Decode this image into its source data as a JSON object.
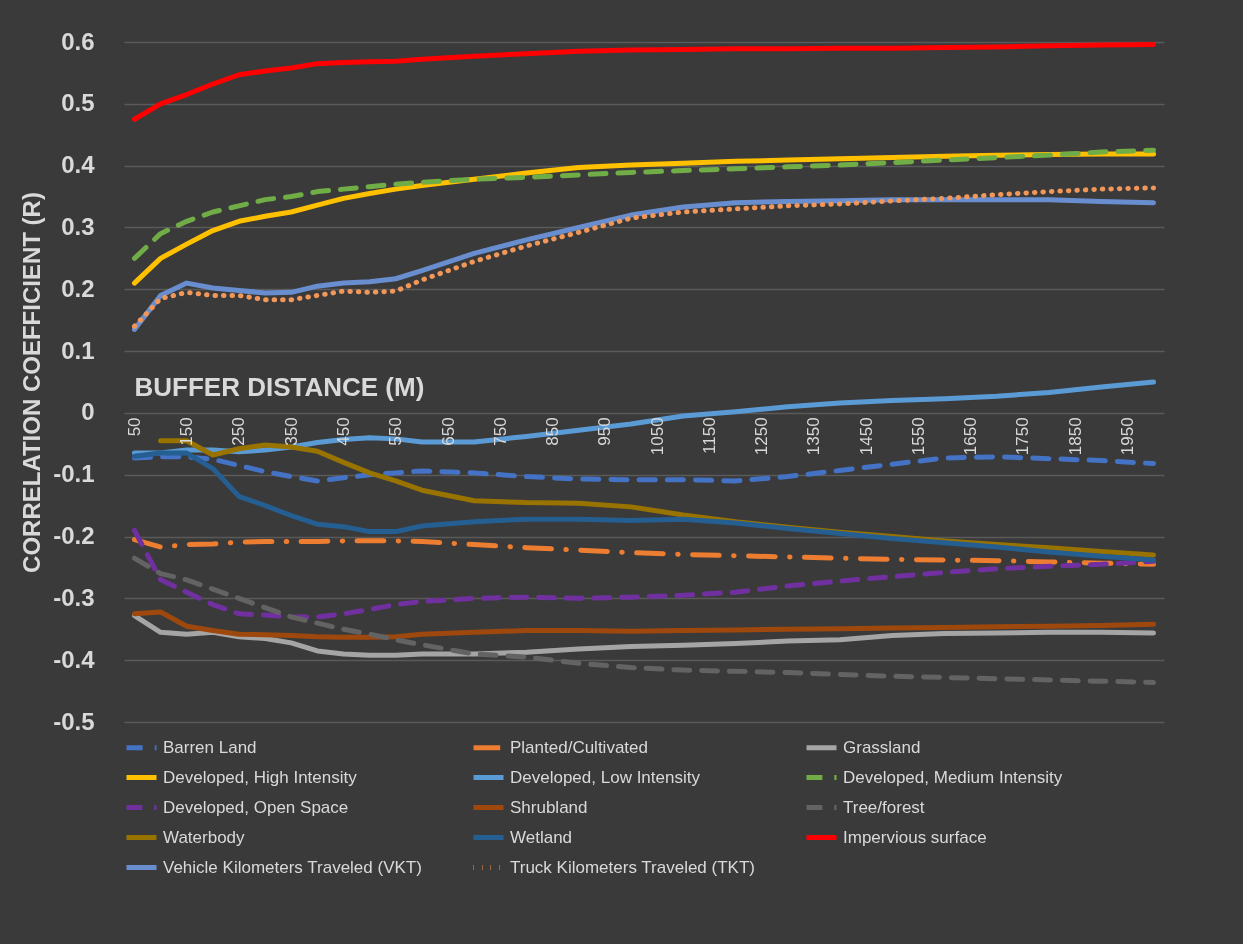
{
  "chart_data": {
    "type": "line",
    "xlabel": "BUFFER DISTANCE (M)",
    "ylabel": "CORRELATION COEFFICIENT (R)",
    "x": [
      50,
      100,
      150,
      200,
      250,
      300,
      350,
      400,
      450,
      500,
      550,
      600,
      700,
      800,
      900,
      1000,
      1100,
      1200,
      1300,
      1400,
      1500,
      1600,
      1700,
      1800,
      1900,
      2000
    ],
    "xlim": [
      30,
      2020
    ],
    "xticks": [
      50,
      150,
      250,
      350,
      450,
      550,
      650,
      750,
      850,
      950,
      1050,
      1150,
      1250,
      1350,
      1450,
      1550,
      1650,
      1750,
      1850,
      1950
    ],
    "ylim": [
      -0.5,
      0.6
    ],
    "yticks": [
      -0.5,
      -0.4,
      -0.3,
      -0.2,
      -0.1,
      0,
      0.1,
      0.2,
      0.3,
      0.4,
      0.5,
      0.6
    ],
    "grid": "y",
    "legend": "bottom",
    "marker": "none",
    "series": [
      {
        "name": "Barren Land",
        "color": "#4472c4",
        "line_style": "dashed",
        "values": [
          -0.073,
          -0.071,
          -0.071,
          -0.075,
          -0.085,
          -0.095,
          -0.103,
          -0.11,
          -0.105,
          -0.1,
          -0.097,
          -0.094,
          -0.097,
          -0.103,
          -0.107,
          -0.108,
          -0.108,
          -0.11,
          -0.103,
          -0.093,
          -0.083,
          -0.073,
          -0.071,
          -0.074,
          -0.077,
          -0.082
        ]
      },
      {
        "name": "Planted/Cultivated",
        "color": "#ed7d31",
        "line_style": "dashdot",
        "values": [
          -0.205,
          -0.217,
          -0.213,
          -0.212,
          -0.209,
          -0.208,
          -0.208,
          -0.208,
          -0.207,
          -0.207,
          -0.207,
          -0.208,
          -0.213,
          -0.218,
          -0.222,
          -0.226,
          -0.229,
          -0.231,
          -0.233,
          -0.235,
          -0.237,
          -0.238,
          -0.239,
          -0.241,
          -0.243,
          -0.245
        ]
      },
      {
        "name": "Grassland",
        "color": "#a5a5a5",
        "line_style": "solid",
        "values": [
          -0.328,
          -0.355,
          -0.358,
          -0.355,
          -0.362,
          -0.365,
          -0.372,
          -0.385,
          -0.39,
          -0.392,
          -0.392,
          -0.39,
          -0.39,
          -0.387,
          -0.382,
          -0.378,
          -0.376,
          -0.373,
          -0.369,
          -0.367,
          -0.36,
          -0.357,
          -0.356,
          -0.355,
          -0.355,
          -0.356
        ]
      },
      {
        "name": "Developed, High Intensity",
        "color": "#ffc000",
        "line_style": "solid",
        "values": [
          0.21,
          0.25,
          0.273,
          0.295,
          0.31,
          0.318,
          0.325,
          0.336,
          0.347,
          0.355,
          0.362,
          0.368,
          0.378,
          0.388,
          0.397,
          0.401,
          0.404,
          0.407,
          0.409,
          0.411,
          0.413,
          0.415,
          0.417,
          0.418,
          0.419,
          0.419
        ]
      },
      {
        "name": "Developed, Low Intensity",
        "color": "#5b9bd5",
        "line_style": "solid",
        "values": [
          -0.065,
          -0.065,
          -0.06,
          -0.06,
          -0.063,
          -0.06,
          -0.055,
          -0.048,
          -0.043,
          -0.04,
          -0.042,
          -0.047,
          -0.047,
          -0.038,
          -0.028,
          -0.018,
          -0.005,
          0.002,
          0.01,
          0.016,
          0.02,
          0.023,
          0.027,
          0.033,
          0.042,
          0.05
        ]
      },
      {
        "name": "Developed, Medium Intensity",
        "color": "#70ad47",
        "line_style": "dashed",
        "values": [
          0.25,
          0.29,
          0.31,
          0.325,
          0.335,
          0.345,
          0.35,
          0.358,
          0.362,
          0.366,
          0.37,
          0.373,
          0.378,
          0.381,
          0.385,
          0.389,
          0.392,
          0.395,
          0.398,
          0.401,
          0.405,
          0.409,
          0.413,
          0.417,
          0.422,
          0.425
        ]
      },
      {
        "name": "Developed, Open Space",
        "color": "#7030a0",
        "line_style": "dashed",
        "values": [
          -0.19,
          -0.27,
          -0.29,
          -0.31,
          -0.325,
          -0.327,
          -0.33,
          -0.33,
          -0.325,
          -0.318,
          -0.31,
          -0.305,
          -0.3,
          -0.298,
          -0.3,
          -0.298,
          -0.295,
          -0.29,
          -0.28,
          -0.272,
          -0.265,
          -0.258,
          -0.252,
          -0.248,
          -0.245,
          -0.24
        ]
      },
      {
        "name": "Shrubland",
        "color": "#9e480e",
        "line_style": "solid",
        "values": [
          -0.325,
          -0.322,
          -0.345,
          -0.352,
          -0.358,
          -0.359,
          -0.36,
          -0.362,
          -0.363,
          -0.363,
          -0.362,
          -0.358,
          -0.355,
          -0.352,
          -0.352,
          -0.353,
          -0.352,
          -0.351,
          -0.35,
          -0.349,
          -0.348,
          -0.347,
          -0.346,
          -0.345,
          -0.344,
          -0.342
        ]
      },
      {
        "name": "Tree/forest",
        "color": "#636363",
        "line_style": "dashed",
        "values": [
          -0.235,
          -0.26,
          -0.27,
          -0.285,
          -0.3,
          -0.315,
          -0.33,
          -0.34,
          -0.35,
          -0.358,
          -0.367,
          -0.375,
          -0.39,
          -0.395,
          -0.405,
          -0.412,
          -0.416,
          -0.418,
          -0.42,
          -0.423,
          -0.426,
          -0.428,
          -0.43,
          -0.432,
          -0.434,
          -0.436
        ]
      },
      {
        "name": "Waterbody",
        "color": "#997300",
        "line_style": "solid",
        "values": [
          null,
          -0.045,
          -0.045,
          -0.068,
          -0.058,
          -0.052,
          -0.055,
          -0.062,
          -0.08,
          -0.097,
          -0.11,
          -0.125,
          -0.142,
          -0.145,
          -0.146,
          -0.152,
          -0.165,
          -0.176,
          -0.185,
          -0.193,
          -0.2,
          -0.207,
          -0.213,
          -0.218,
          -0.224,
          -0.23
        ]
      },
      {
        "name": "Wetland",
        "color": "#255e91",
        "line_style": "solid",
        "values": [
          -0.07,
          -0.065,
          -0.065,
          -0.09,
          -0.135,
          -0.15,
          -0.166,
          -0.18,
          -0.184,
          -0.192,
          -0.192,
          -0.183,
          -0.176,
          -0.172,
          -0.172,
          -0.174,
          -0.172,
          -0.178,
          -0.187,
          -0.195,
          -0.203,
          -0.21,
          -0.217,
          -0.225,
          -0.232,
          -0.238
        ]
      },
      {
        "name": "Impervious surface",
        "color": "#ff0000",
        "line_style": "solid",
        "values": [
          0.475,
          0.5,
          0.515,
          0.532,
          0.547,
          0.553,
          0.558,
          0.565,
          0.567,
          0.568,
          0.569,
          0.572,
          0.577,
          0.581,
          0.585,
          0.587,
          0.588,
          0.589,
          0.589,
          0.59,
          0.59,
          0.591,
          0.592,
          0.594,
          0.595,
          0.596
        ]
      },
      {
        "name": "Vehicle Kilometers Traveled (VKT)",
        "color": "#698ed0",
        "line_style": "solid",
        "values": [
          0.135,
          0.19,
          0.21,
          0.202,
          0.198,
          0.194,
          0.195,
          0.205,
          0.21,
          0.212,
          0.217,
          0.23,
          0.258,
          0.28,
          0.3,
          0.32,
          0.333,
          0.34,
          0.342,
          0.343,
          0.345,
          0.345,
          0.345,
          0.345,
          0.342,
          0.34
        ]
      },
      {
        "name": "Truck Kilometers Traveled (TKT)",
        "color": "#f1975a",
        "line_style": "dotted",
        "values": [
          0.14,
          0.185,
          0.195,
          0.19,
          0.19,
          0.183,
          0.183,
          0.19,
          0.197,
          0.195,
          0.197,
          0.215,
          0.245,
          0.27,
          0.292,
          0.315,
          0.325,
          0.33,
          0.335,
          0.338,
          0.343,
          0.347,
          0.353,
          0.358,
          0.362,
          0.364
        ]
      }
    ]
  }
}
